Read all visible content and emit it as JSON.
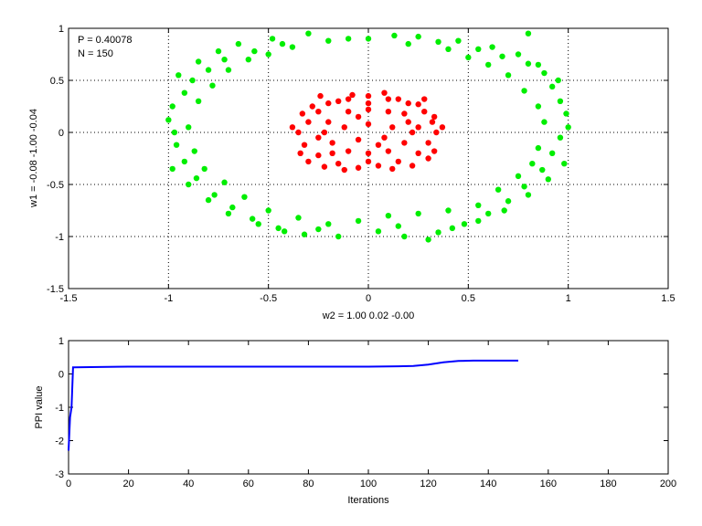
{
  "chart_data": [
    {
      "type": "scatter",
      "annotations": [
        "P = 0.40078",
        "N = 150"
      ],
      "xlabel": "w2 = 1.00  0.02  -0.00",
      "ylabel": "w1 = -0.08  -1.00  -0.04",
      "xlim": [
        -1.5,
        1.5
      ],
      "ylim": [
        -1.5,
        1.0
      ],
      "xticks": [
        -1.5,
        -1,
        -0.5,
        0,
        0.5,
        1,
        1.5
      ],
      "xtick_labels": [
        "-1.5",
        "-1",
        "-0.5",
        "0",
        "0.5",
        "1",
        "1.5"
      ],
      "yticks": [
        -1.5,
        -1,
        -0.5,
        0,
        0.5,
        1
      ],
      "ytick_labels": [
        "-1.5",
        "-1",
        "-0.5",
        "0",
        "0.5",
        "1"
      ],
      "grid": true,
      "colors": {
        "outer": "#00ee00",
        "inner": "#ff0000"
      },
      "series": [
        {
          "points": [
            [
              0.8,
              0.95
            ],
            [
              0.13,
              0.93
            ],
            [
              -0.1,
              0.9
            ],
            [
              0.35,
              0.87
            ],
            [
              -0.43,
              0.85
            ],
            [
              0.55,
              0.8
            ],
            [
              -0.57,
              0.78
            ],
            [
              0.67,
              0.73
            ],
            [
              -0.72,
              0.7
            ],
            [
              0.8,
              0.66
            ],
            [
              -0.8,
              0.6
            ],
            [
              0.88,
              0.57
            ],
            [
              -0.88,
              0.5
            ],
            [
              0.92,
              0.44
            ],
            [
              -0.92,
              0.38
            ],
            [
              0.96,
              0.3
            ],
            [
              -0.98,
              0.25
            ],
            [
              0.99,
              0.18
            ],
            [
              -1.0,
              0.12
            ],
            [
              1.0,
              0.05
            ],
            [
              -0.97,
              0.0
            ],
            [
              0.96,
              -0.05
            ],
            [
              -0.96,
              -0.12
            ],
            [
              0.92,
              -0.2
            ],
            [
              -0.92,
              -0.28
            ],
            [
              0.87,
              -0.36
            ],
            [
              -0.86,
              -0.44
            ],
            [
              0.78,
              -0.52
            ],
            [
              -0.77,
              -0.6
            ],
            [
              0.7,
              -0.66
            ],
            [
              -0.68,
              -0.72
            ],
            [
              0.6,
              -0.78
            ],
            [
              -0.58,
              -0.83
            ],
            [
              0.48,
              -0.88
            ],
            [
              -0.45,
              -0.92
            ],
            [
              0.35,
              -0.96
            ],
            [
              -0.32,
              -0.98
            ],
            [
              0.18,
              -1.0
            ],
            [
              -0.15,
              -1.0
            ],
            [
              0.05,
              -0.95
            ],
            [
              0.3,
              -1.03
            ],
            [
              -0.05,
              -0.85
            ],
            [
              0.1,
              -0.8
            ],
            [
              -0.2,
              -0.88
            ],
            [
              0.25,
              -0.78
            ],
            [
              -0.35,
              -0.82
            ],
            [
              0.4,
              -0.75
            ],
            [
              -0.5,
              -0.75
            ],
            [
              0.55,
              -0.7
            ],
            [
              0.65,
              -0.55
            ],
            [
              -0.62,
              -0.62
            ],
            [
              0.75,
              -0.42
            ],
            [
              -0.72,
              -0.48
            ],
            [
              0.82,
              -0.3
            ],
            [
              -0.82,
              -0.35
            ],
            [
              0.85,
              -0.15
            ],
            [
              -0.87,
              -0.18
            ],
            [
              0.88,
              0.1
            ],
            [
              -0.9,
              0.05
            ],
            [
              0.85,
              0.25
            ],
            [
              -0.85,
              0.3
            ],
            [
              0.78,
              0.4
            ],
            [
              -0.78,
              0.45
            ],
            [
              0.7,
              0.55
            ],
            [
              -0.7,
              0.6
            ],
            [
              0.6,
              0.65
            ],
            [
              -0.6,
              0.7
            ],
            [
              0.5,
              0.72
            ],
            [
              -0.5,
              0.75
            ],
            [
              0.4,
              0.8
            ],
            [
              -0.38,
              0.82
            ],
            [
              0.2,
              0.85
            ],
            [
              -0.2,
              0.88
            ],
            [
              0.0,
              0.9
            ],
            [
              0.25,
              0.92
            ],
            [
              -0.3,
              0.95
            ],
            [
              0.45,
              0.88
            ],
            [
              -0.48,
              0.9
            ],
            [
              0.62,
              0.82
            ],
            [
              -0.65,
              0.85
            ],
            [
              0.75,
              0.75
            ],
            [
              -0.75,
              0.78
            ],
            [
              0.85,
              0.65
            ],
            [
              -0.85,
              0.68
            ],
            [
              0.95,
              0.5
            ],
            [
              -0.95,
              0.55
            ],
            [
              0.98,
              -0.3
            ],
            [
              -0.98,
              -0.35
            ],
            [
              0.9,
              -0.45
            ],
            [
              -0.9,
              -0.5
            ],
            [
              0.8,
              -0.6
            ],
            [
              -0.8,
              -0.65
            ],
            [
              0.68,
              -0.75
            ],
            [
              -0.7,
              -0.78
            ],
            [
              0.55,
              -0.85
            ],
            [
              -0.55,
              -0.88
            ],
            [
              0.42,
              -0.92
            ],
            [
              -0.42,
              -0.95
            ],
            [
              0.15,
              -0.9
            ],
            [
              -0.25,
              -0.93
            ]
          ],
          "color": "#00ee00"
        },
        {
          "points": [
            [
              -0.3,
              0.1
            ],
            [
              -0.25,
              0.2
            ],
            [
              -0.2,
              0.28
            ],
            [
              -0.1,
              0.32
            ],
            [
              0.0,
              0.35
            ],
            [
              0.1,
              0.32
            ],
            [
              0.2,
              0.28
            ],
            [
              0.28,
              0.2
            ],
            [
              0.32,
              0.1
            ],
            [
              0.34,
              0.0
            ],
            [
              0.3,
              -0.1
            ],
            [
              0.25,
              -0.2
            ],
            [
              0.15,
              -0.28
            ],
            [
              0.05,
              -0.32
            ],
            [
              -0.05,
              -0.34
            ],
            [
              -0.15,
              -0.3
            ],
            [
              -0.25,
              -0.22
            ],
            [
              -0.32,
              -0.12
            ],
            [
              -0.35,
              0.0
            ],
            [
              -0.2,
              0.1
            ],
            [
              -0.1,
              0.2
            ],
            [
              0.0,
              0.22
            ],
            [
              0.1,
              0.2
            ],
            [
              0.2,
              0.1
            ],
            [
              0.22,
              0.0
            ],
            [
              0.18,
              -0.1
            ],
            [
              0.1,
              -0.18
            ],
            [
              0.0,
              -0.2
            ],
            [
              -0.1,
              -0.18
            ],
            [
              -0.18,
              -0.1
            ],
            [
              -0.22,
              0.0
            ],
            [
              -0.12,
              0.05
            ],
            [
              0.0,
              0.08
            ],
            [
              0.12,
              0.05
            ],
            [
              0.08,
              -0.05
            ],
            [
              -0.05,
              -0.07
            ],
            [
              -0.28,
              0.25
            ],
            [
              0.25,
              0.27
            ],
            [
              0.3,
              -0.25
            ],
            [
              -0.3,
              -0.28
            ],
            [
              -0.15,
              0.3
            ],
            [
              0.15,
              0.32
            ],
            [
              0.12,
              -0.35
            ],
            [
              -0.12,
              -0.36
            ],
            [
              -0.33,
              0.18
            ],
            [
              0.33,
              0.15
            ],
            [
              0.33,
              -0.18
            ],
            [
              -0.34,
              -0.2
            ],
            [
              -0.05,
              0.15
            ],
            [
              0.05,
              -0.12
            ],
            [
              0.25,
              0.05
            ],
            [
              -0.25,
              -0.05
            ],
            [
              0.18,
              0.18
            ],
            [
              -0.18,
              -0.2
            ],
            [
              0.0,
              0.28
            ],
            [
              0.0,
              -0.28
            ],
            [
              -0.38,
              0.05
            ],
            [
              0.37,
              0.05
            ],
            [
              0.28,
              0.32
            ],
            [
              -0.08,
              0.36
            ],
            [
              0.08,
              0.38
            ],
            [
              -0.24,
              0.35
            ],
            [
              0.22,
              -0.32
            ],
            [
              -0.22,
              -0.33
            ]
          ],
          "color": "#ff0000"
        }
      ]
    },
    {
      "type": "line",
      "xlabel": "Iterations",
      "ylabel": "PPI value",
      "xlim": [
        0,
        200
      ],
      "ylim": [
        -3,
        1
      ],
      "xticks": [
        0,
        20,
        40,
        60,
        80,
        100,
        120,
        140,
        160,
        180,
        200
      ],
      "xtick_labels": [
        "0",
        "20",
        "40",
        "60",
        "80",
        "100",
        "120",
        "140",
        "160",
        "180",
        "200"
      ],
      "yticks": [
        -3,
        -2,
        -1,
        0,
        1
      ],
      "ytick_labels": [
        "-3",
        "-2",
        "-1",
        "0",
        "1"
      ],
      "grid": false,
      "series": [
        {
          "x": [
            0,
            0.5,
            1,
            1.5,
            2,
            10,
            20,
            40,
            60,
            80,
            100,
            110,
            115,
            120,
            125,
            130,
            135,
            140,
            145,
            150
          ],
          "values": [
            -2.3,
            -1.3,
            -1.0,
            0.2,
            0.2,
            0.21,
            0.22,
            0.22,
            0.22,
            0.22,
            0.22,
            0.23,
            0.24,
            0.28,
            0.35,
            0.39,
            0.4,
            0.4,
            0.4,
            0.4
          ],
          "color": "#0000ff"
        }
      ]
    }
  ]
}
